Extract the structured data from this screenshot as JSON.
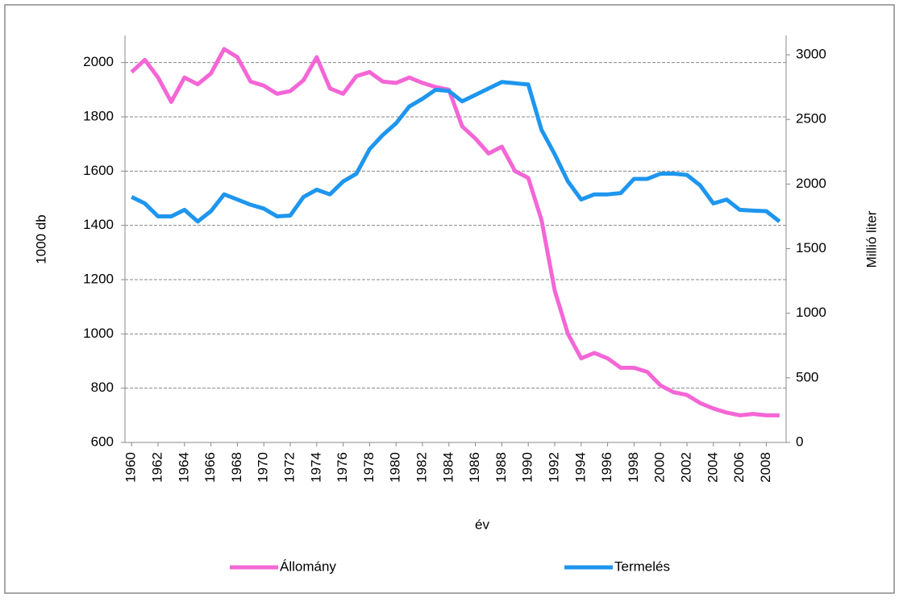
{
  "chart_data": {
    "type": "line",
    "x_label": "év",
    "y_label": "1000 db",
    "y2_label": "Millió liter",
    "x": [
      1960,
      1961,
      1962,
      1963,
      1964,
      1965,
      1966,
      1967,
      1968,
      1969,
      1970,
      1971,
      1972,
      1973,
      1974,
      1975,
      1976,
      1977,
      1978,
      1979,
      1980,
      1981,
      1982,
      1983,
      1984,
      1985,
      1986,
      1987,
      1988,
      1989,
      1990,
      1991,
      1992,
      1993,
      1994,
      1995,
      1996,
      1997,
      1998,
      1999,
      2000,
      2001,
      2002,
      2003,
      2004,
      2005,
      2006,
      2007,
      2008,
      2009
    ],
    "xlim": [
      1959.5,
      2009.5
    ],
    "xticks": [
      1960,
      1962,
      1964,
      1966,
      1968,
      1970,
      1972,
      1974,
      1976,
      1978,
      1980,
      1982,
      1984,
      1986,
      1988,
      1990,
      1992,
      1994,
      1996,
      1998,
      2000,
      2002,
      2004,
      2006,
      2008
    ],
    "ylim": [
      600,
      2100
    ],
    "yticks": [
      600,
      800,
      1000,
      1200,
      1400,
      1600,
      1800,
      2000
    ],
    "y2lim": [
      0,
      3150
    ],
    "y2ticks": [
      0,
      500,
      1000,
      1500,
      2000,
      2500,
      3000
    ],
    "grid": true,
    "legend": "bottom",
    "series": [
      {
        "name": "Állomány",
        "color": "#f466d6",
        "values": [
          1965,
          2010,
          1945,
          1855,
          1945,
          1920,
          1960,
          2050,
          2020,
          1930,
          1915,
          1885,
          1895,
          1935,
          2020,
          1905,
          1885,
          1950,
          1965,
          1930,
          1925,
          1945,
          1925,
          1910,
          1900,
          1765,
          1720,
          1665,
          1690,
          1600,
          1575,
          1420,
          1160,
          1000,
          910,
          930,
          910,
          875,
          875,
          860,
          810,
          785,
          775,
          745,
          725,
          710,
          700,
          705,
          700,
          700
        ]
      },
      {
        "name": "Termelés",
        "color": "#1e96ee",
        "axis": "y2",
        "values": [
          1900,
          1850,
          1750,
          1750,
          1800,
          1710,
          1790,
          1920,
          1880,
          1840,
          1810,
          1750,
          1756,
          1900,
          1956,
          1920,
          2020,
          2080,
          2270,
          2380,
          2470,
          2600,
          2660,
          2730,
          2720,
          2640,
          2690,
          2740,
          2790,
          2780,
          2770,
          2420,
          2230,
          2020,
          1880,
          1920,
          1920,
          1930,
          2040,
          2040,
          2080,
          2080,
          2070,
          1990,
          1850,
          1880,
          1800,
          1794,
          1790,
          1710
        ]
      }
    ]
  }
}
